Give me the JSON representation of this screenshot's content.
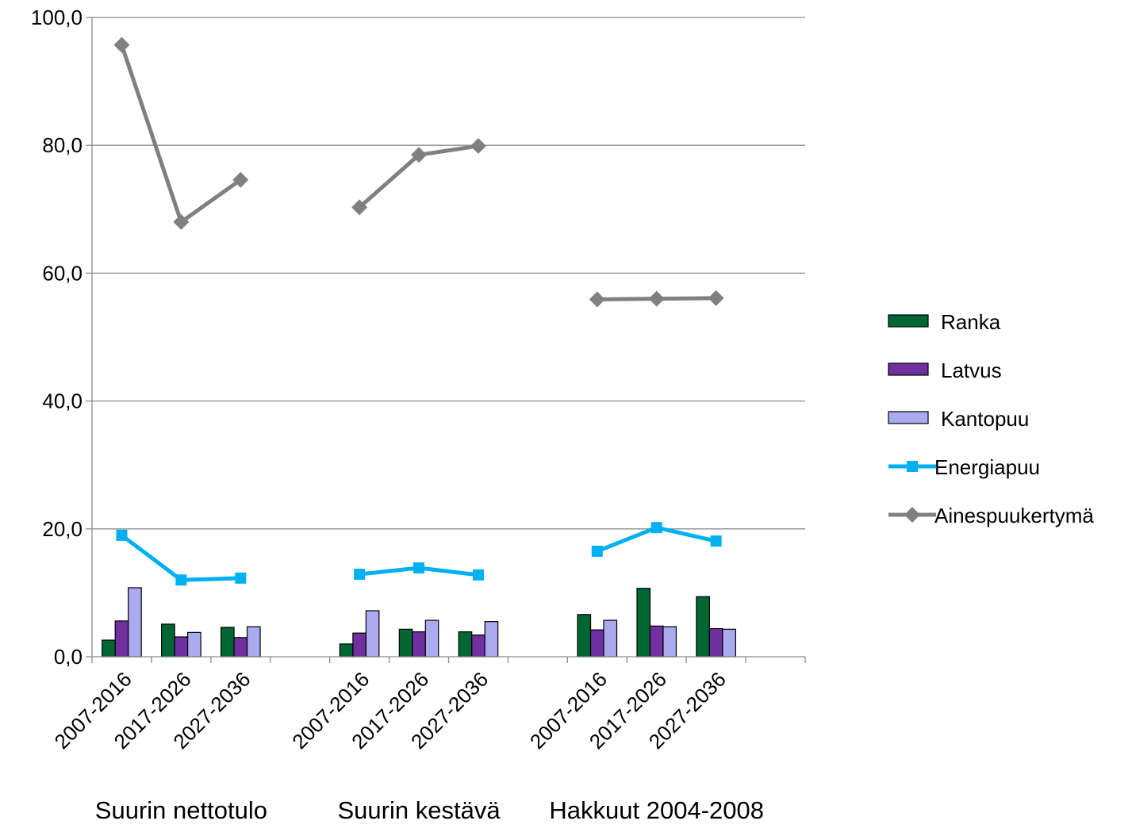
{
  "chart_data": {
    "type": "bar",
    "ylim": [
      0,
      100
    ],
    "y_ticks": [
      "0,0",
      "20,0",
      "40,0",
      "60,0",
      "80,0",
      "100,0"
    ],
    "grid": true,
    "legend_position": "right",
    "groups": [
      {
        "label": "Suurin nettotulo",
        "categories": [
          "2007-2016",
          "2017-2026",
          "2027-2036"
        ]
      },
      {
        "label": "Suurin kestävä",
        "categories": [
          "2007-2016",
          "2017-2026",
          "2027-2036"
        ]
      },
      {
        "label": "Hakkuut 2004-2008",
        "categories": [
          "2007-2016",
          "2017-2026",
          "2027-2036"
        ]
      }
    ],
    "series": [
      {
        "name": "Ranka",
        "kind": "bar",
        "color": "#006633",
        "values": [
          [
            2.6,
            5.1,
            4.6
          ],
          [
            2.0,
            4.3,
            3.9
          ],
          [
            6.6,
            10.7,
            9.4
          ]
        ]
      },
      {
        "name": "Latvus",
        "kind": "bar",
        "color": "#7030A0",
        "values": [
          [
            5.6,
            3.1,
            3.0
          ],
          [
            3.7,
            3.9,
            3.4
          ],
          [
            4.2,
            4.8,
            4.4
          ]
        ]
      },
      {
        "name": "Kantopuu",
        "kind": "bar",
        "color": "#AAAAEE",
        "values": [
          [
            10.8,
            3.8,
            4.7
          ],
          [
            7.2,
            5.7,
            5.5
          ],
          [
            5.7,
            4.7,
            4.3
          ]
        ]
      },
      {
        "name": "Energiapuu",
        "kind": "line",
        "marker": "square",
        "color": "#00B0F0",
        "values": [
          [
            19.0,
            12.0,
            12.3
          ],
          [
            12.9,
            13.9,
            12.8
          ],
          [
            16.5,
            20.2,
            18.1
          ]
        ]
      },
      {
        "name": "Ainespuukertymä",
        "kind": "line",
        "marker": "diamond",
        "color": "#808080",
        "values": [
          [
            95.7,
            68.0,
            74.6
          ],
          [
            70.3,
            78.5,
            79.9
          ],
          [
            55.9,
            56.0,
            56.1
          ]
        ]
      }
    ]
  }
}
